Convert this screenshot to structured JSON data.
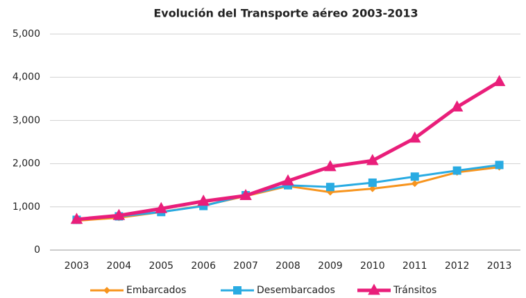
{
  "chart_data": {
    "type": "line",
    "title": "Evolución del Transporte aéreo 2003-2013",
    "categories": [
      "2003",
      "2004",
      "2005",
      "2006",
      "2007",
      "2008",
      "2009",
      "2010",
      "2011",
      "2012",
      "2013"
    ],
    "series": [
      {
        "name": "Embarcados",
        "color": "#f7941d",
        "marker": "diamond",
        "values": [
          680,
          750,
          880,
          1030,
          1250,
          1480,
          1340,
          1420,
          1540,
          1800,
          1920
        ]
      },
      {
        "name": "Desembarcados",
        "color": "#29abe2",
        "marker": "square",
        "values": [
          700,
          780,
          880,
          1020,
          1270,
          1500,
          1460,
          1560,
          1700,
          1840,
          1970
        ]
      },
      {
        "name": "Tránsitos",
        "color": "#e91e7a",
        "marker": "triangle",
        "values": [
          710,
          800,
          960,
          1130,
          1260,
          1600,
          1930,
          2070,
          2590,
          3310,
          3900
        ]
      }
    ],
    "ylim": [
      0,
      5000
    ],
    "yticks": [
      0,
      {
        "value": 1000,
        "label": "1,000"
      },
      {
        "value": 2000,
        "label": "2,000"
      },
      {
        "value": 3000,
        "label": "3,000"
      },
      {
        "value": 4000,
        "label": "4,000"
      },
      {
        "value": 5000,
        "label": "5,000"
      }
    ],
    "grid": true,
    "legend": "bottom"
  }
}
